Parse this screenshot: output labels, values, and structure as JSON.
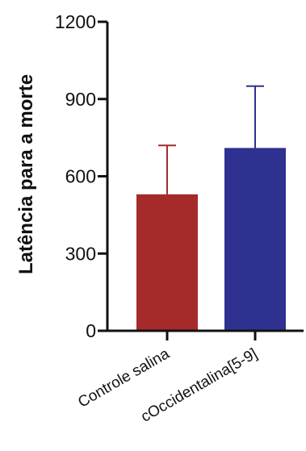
{
  "chart_data": {
    "type": "bar",
    "title": "",
    "xlabel": "",
    "ylabel": "Latência para a morte",
    "ylim": [
      0,
      1200
    ],
    "yticks": [
      "0",
      "300",
      "600",
      "900",
      "1200"
    ],
    "ytick_values": [
      0,
      300,
      600,
      900,
      1200
    ],
    "categories": [
      "Controle salina",
      "cOccidentalina[5-9]"
    ],
    "values": [
      530,
      710
    ],
    "errors": [
      190,
      240
    ],
    "colors": [
      "#a52a2a",
      "#2e318f"
    ],
    "grid": false,
    "legend": "none"
  }
}
